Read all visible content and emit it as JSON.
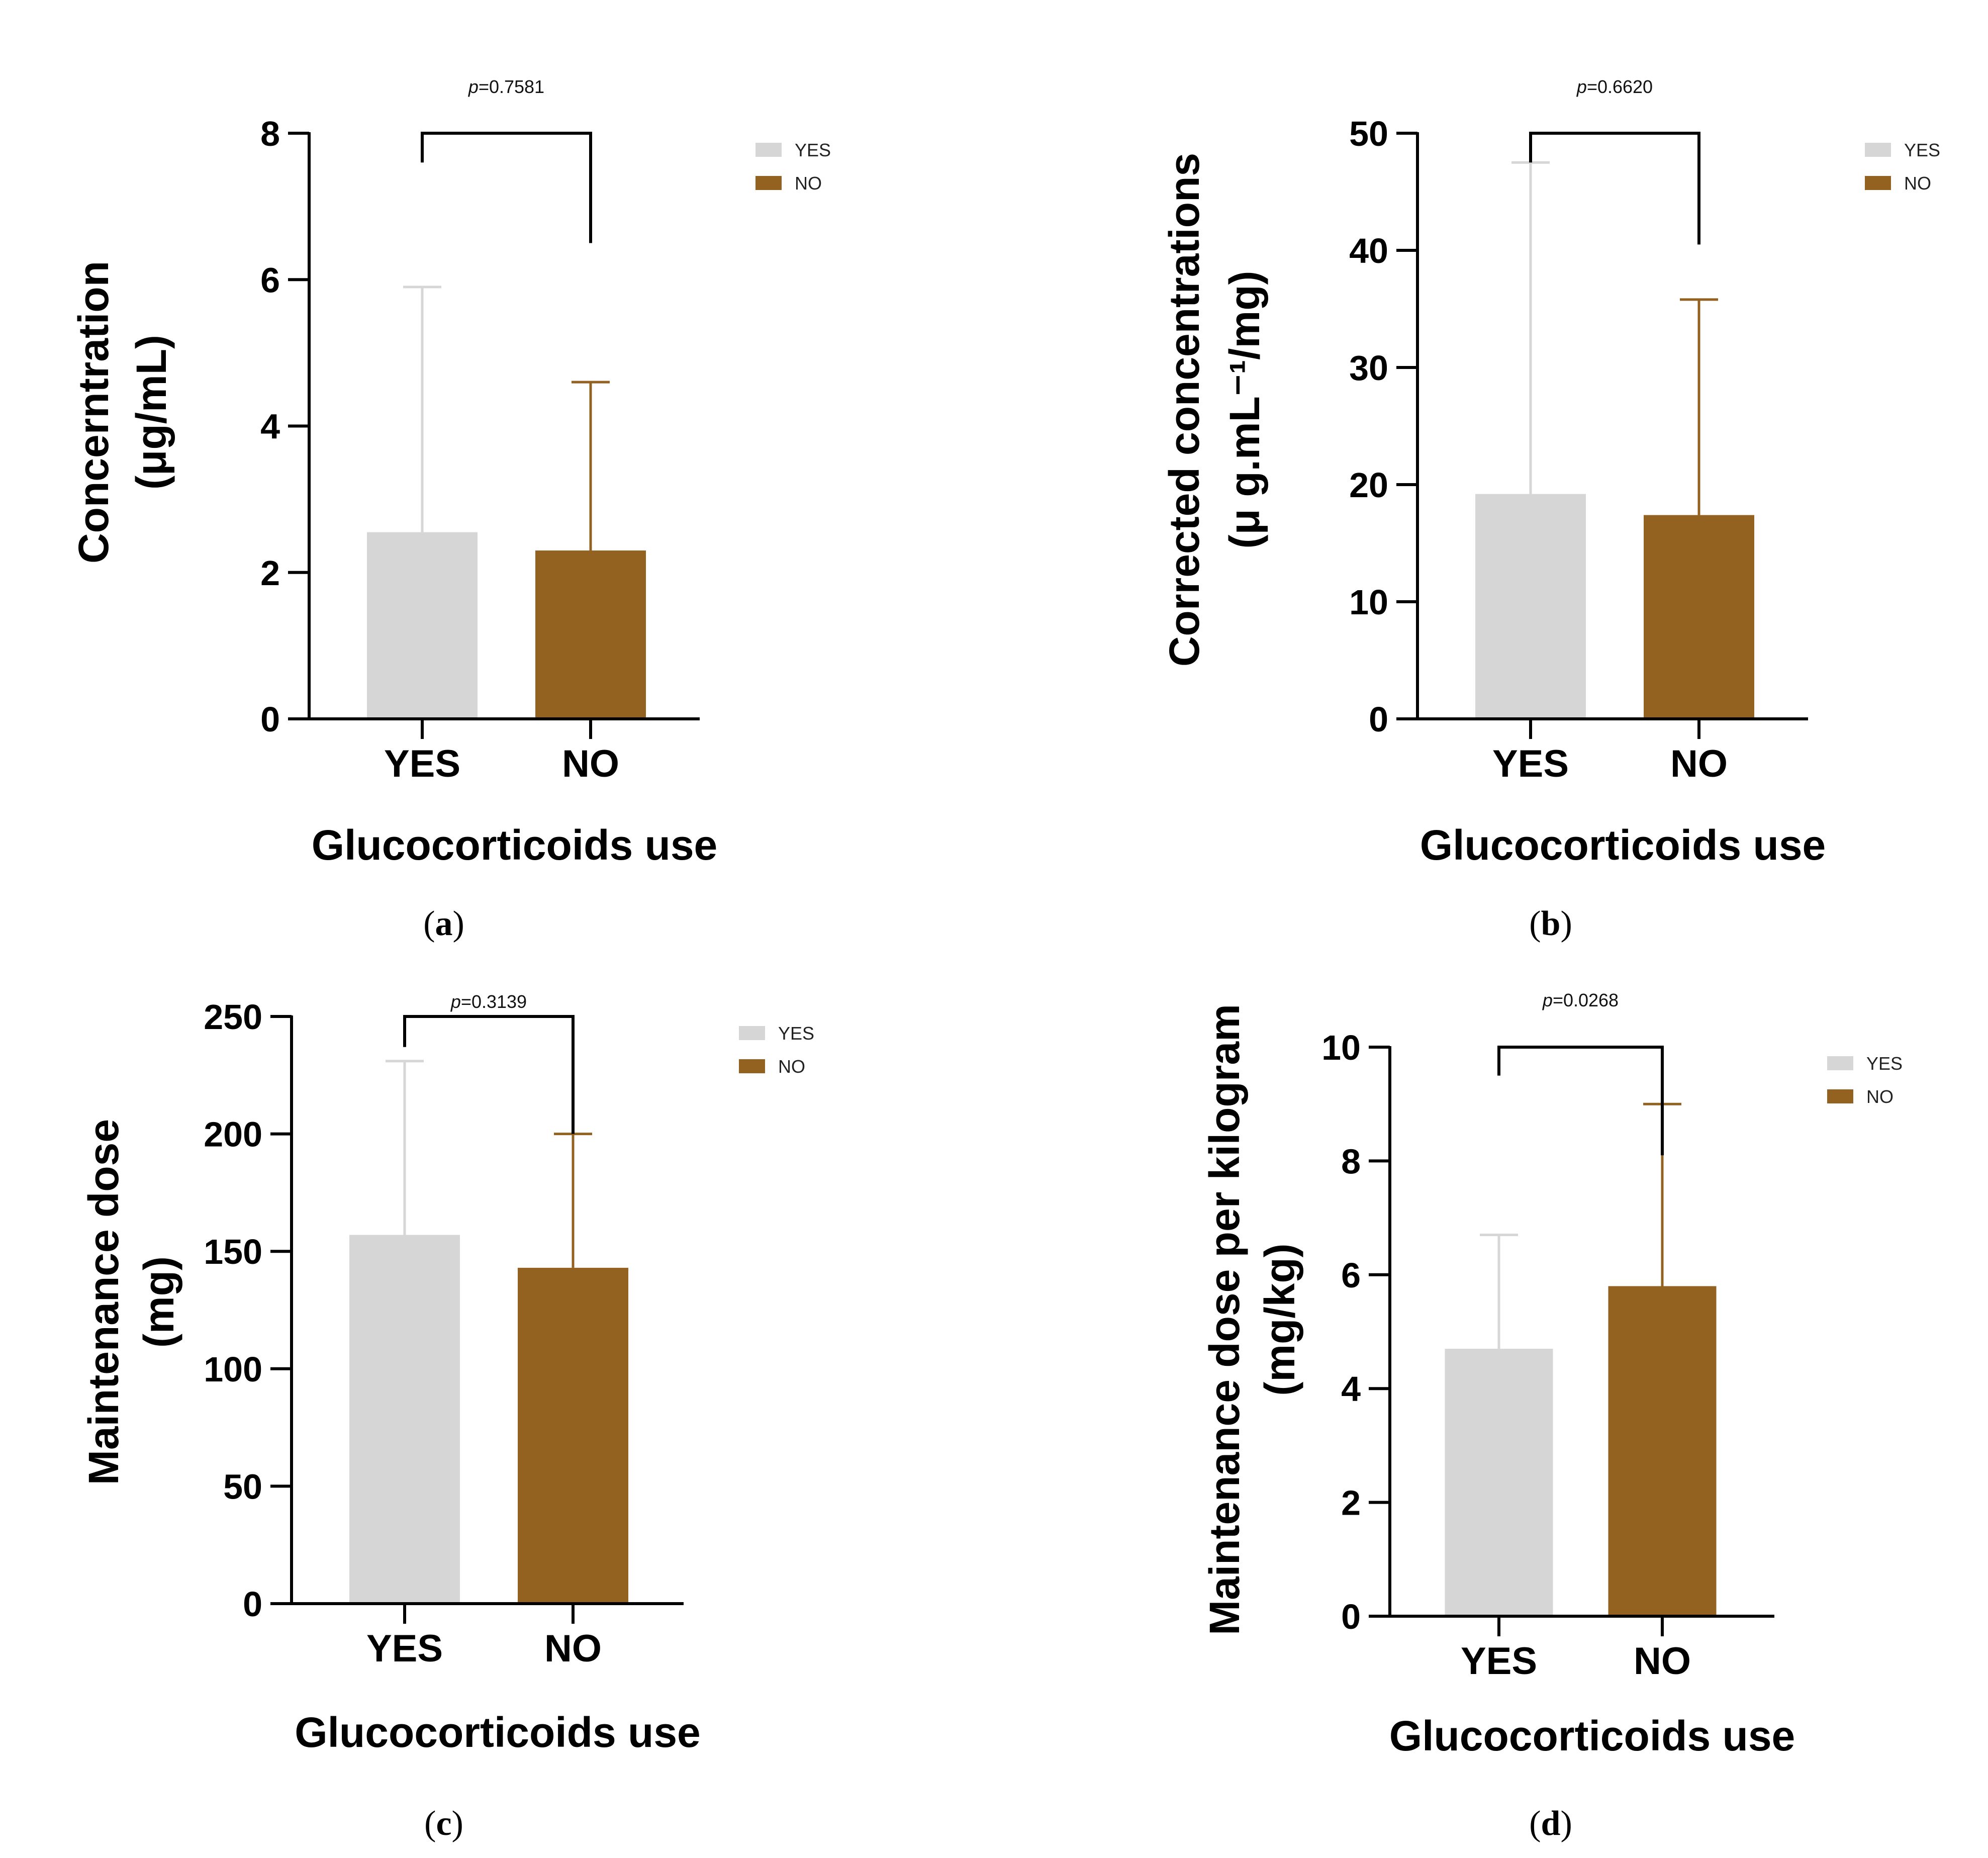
{
  "colors": {
    "yes": "#d6d6d6",
    "no": "#936220",
    "axis": "#000000",
    "bracket": "#000000"
  },
  "chart_data": [
    {
      "type": "bar",
      "panel": "a",
      "categories": [
        "YES",
        "NO"
      ],
      "values": [
        2.55,
        2.3
      ],
      "error_upper": [
        5.9,
        4.6
      ],
      "ylim": [
        0,
        8
      ],
      "yticks": [
        "0",
        "2",
        "4",
        "6",
        "8"
      ],
      "ytick_values": [
        0,
        2,
        4,
        6,
        8
      ],
      "ylabel_lines": [
        "Concerntration",
        "(μg/mL)"
      ],
      "xlabel": "Glucocorticoids use",
      "p_prefix": "p",
      "p_value": "=0.7581",
      "bracket_left": 7.6,
      "bracket_right": 6.5,
      "bracket_top": 8,
      "legend": [
        "YES",
        "NO"
      ]
    },
    {
      "type": "bar",
      "panel": "b",
      "categories": [
        "YES",
        "NO"
      ],
      "values": [
        19.2,
        17.4
      ],
      "error_upper": [
        47.5,
        35.8
      ],
      "ylim": [
        0,
        50
      ],
      "yticks": [
        "0",
        "10",
        "20",
        "30",
        "40",
        "50"
      ],
      "ytick_values": [
        0,
        10,
        20,
        30,
        40,
        50
      ],
      "ylabel_lines": [
        "Corrected concentrations",
        "(μ g.mL⁻¹/mg)"
      ],
      "xlabel": "Glucocorticoids use",
      "p_prefix": "p",
      "p_value": "=0.6620",
      "bracket_left": 47.5,
      "bracket_right": 40.5,
      "bracket_top": 50,
      "legend": [
        "YES",
        "NO"
      ]
    },
    {
      "type": "bar",
      "panel": "c",
      "categories": [
        "YES",
        "NO"
      ],
      "values": [
        157,
        143
      ],
      "error_upper": [
        231,
        200
      ],
      "ylim": [
        0,
        250
      ],
      "yticks": [
        "0",
        "50",
        "100",
        "150",
        "200",
        "250"
      ],
      "ytick_values": [
        0,
        50,
        100,
        150,
        200,
        250
      ],
      "ylabel_lines": [
        "Maintenance dose",
        "(mg)"
      ],
      "xlabel": "Glucocorticoids use",
      "p_prefix": "p",
      "p_value": "=0.3139",
      "bracket_left": 237,
      "bracket_right": 200,
      "bracket_top": 250,
      "legend": [
        "YES",
        "NO"
      ]
    },
    {
      "type": "bar",
      "panel": "d",
      "categories": [
        "YES",
        "NO"
      ],
      "values": [
        4.7,
        5.8
      ],
      "error_upper": [
        6.7,
        9.0
      ],
      "ylim": [
        0,
        10
      ],
      "yticks": [
        "0",
        "2",
        "4",
        "6",
        "8",
        "10"
      ],
      "ytick_values": [
        0,
        2,
        4,
        6,
        8,
        10
      ],
      "ylabel_lines": [
        "Maintenance dose per kilogram",
        "(mg/kg)"
      ],
      "xlabel": "Glucocorticoids use",
      "p_prefix": "p",
      "p_value": "=0.0268",
      "bracket_left": 9.5,
      "bracket_right": 8.1,
      "bracket_top": 10,
      "legend": [
        "YES",
        "NO"
      ]
    }
  ],
  "panel_labels": [
    {
      "open": "(",
      "letter": "a",
      "close": ")"
    },
    {
      "open": "(",
      "letter": "b",
      "close": ")"
    },
    {
      "open": "(",
      "letter": "c",
      "close": ")"
    },
    {
      "open": "(",
      "letter": "d",
      "close": ")"
    }
  ]
}
